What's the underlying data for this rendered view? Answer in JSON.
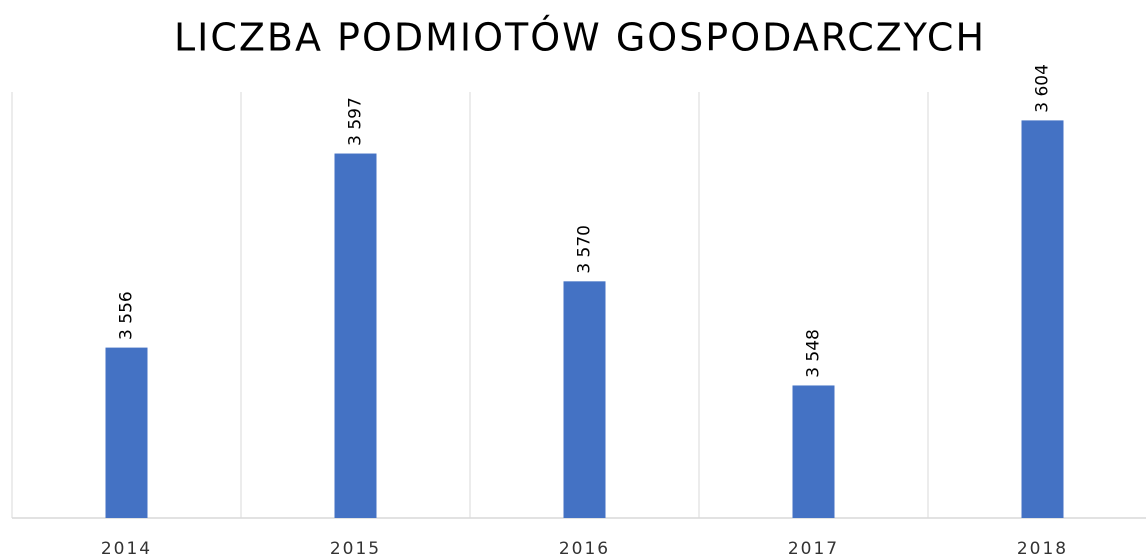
{
  "chart_data": {
    "type": "bar",
    "title": "LICZBA PODMIOTÓW GOSPODARCZYCH",
    "categories": [
      "2014",
      "2015",
      "2016",
      "2017",
      "2018"
    ],
    "values": [
      3556,
      3597,
      3570,
      3548,
      3604
    ],
    "value_labels": [
      "3 556",
      "3 597",
      "3 570",
      "3 548",
      "3 604"
    ],
    "color": "#4472c4",
    "ylim": [
      3520,
      3610
    ],
    "grid": true
  }
}
